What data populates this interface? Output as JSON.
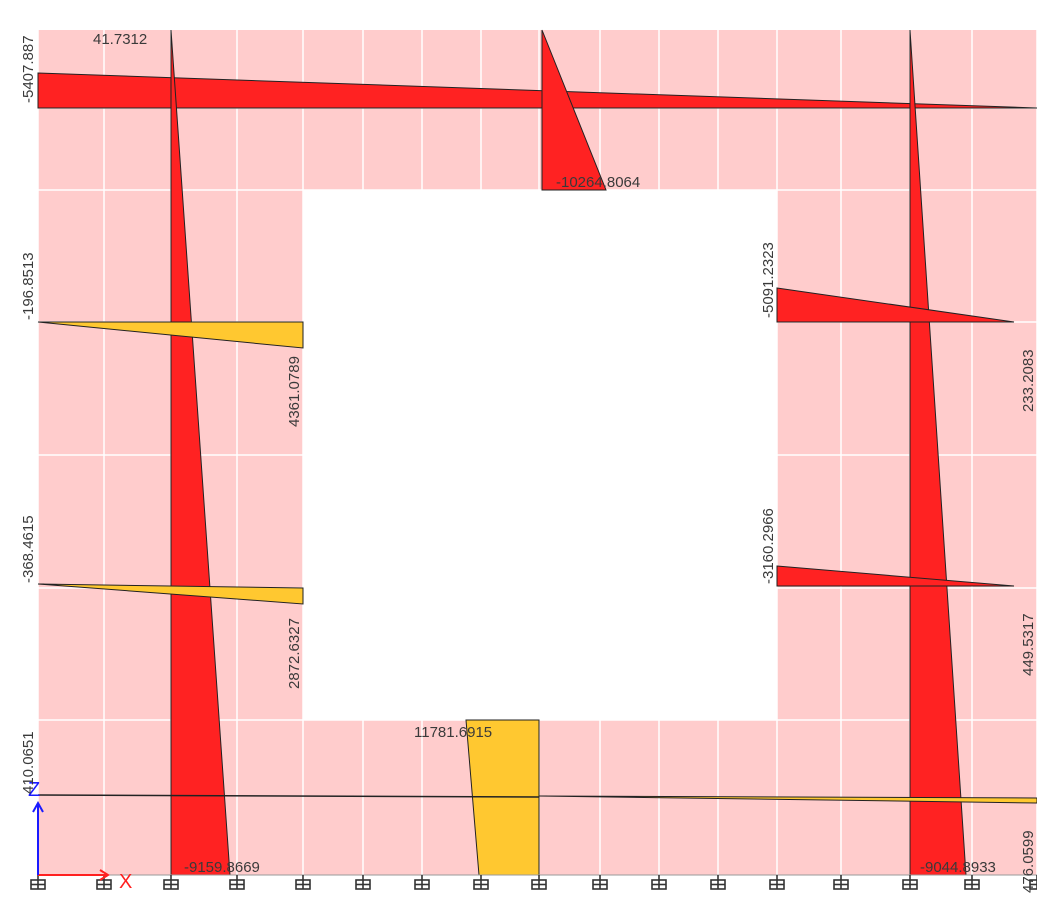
{
  "colors": {
    "background": "#ffffff",
    "wall_fill": "#ffcccc",
    "grid_line": "#ffffff",
    "negative_fill": "#ff2222",
    "positive_fill": "#ffc830",
    "outline": "#222222",
    "support": "#333333",
    "axis_x": "#ff2020",
    "axis_z": "#1a1aff"
  },
  "axes": {
    "x_label": "X",
    "z_label": "Z"
  },
  "values": {
    "top_beam_left": "-5407.887",
    "top_column_left": "41.7312",
    "top_mid_spike": "-10264.8064",
    "left_beam_upper": "-196.8513",
    "left_beam_upper_end": "4361.0789",
    "left_beam_mid": "-368.4615",
    "left_beam_mid_end": "2872.6327",
    "left_bottom": "410.0651",
    "bottom_mid": "11781.6915",
    "bottom_left_column": "-9159.8669",
    "right_beam_upper": "-5091.2323",
    "right_beam_upper_end": "233.2083",
    "right_beam_mid": "-3160.2966",
    "right_beam_mid_end": "449.5317",
    "bottom_right_column": "-9044.8933",
    "right_bottom": "476.0599"
  }
}
